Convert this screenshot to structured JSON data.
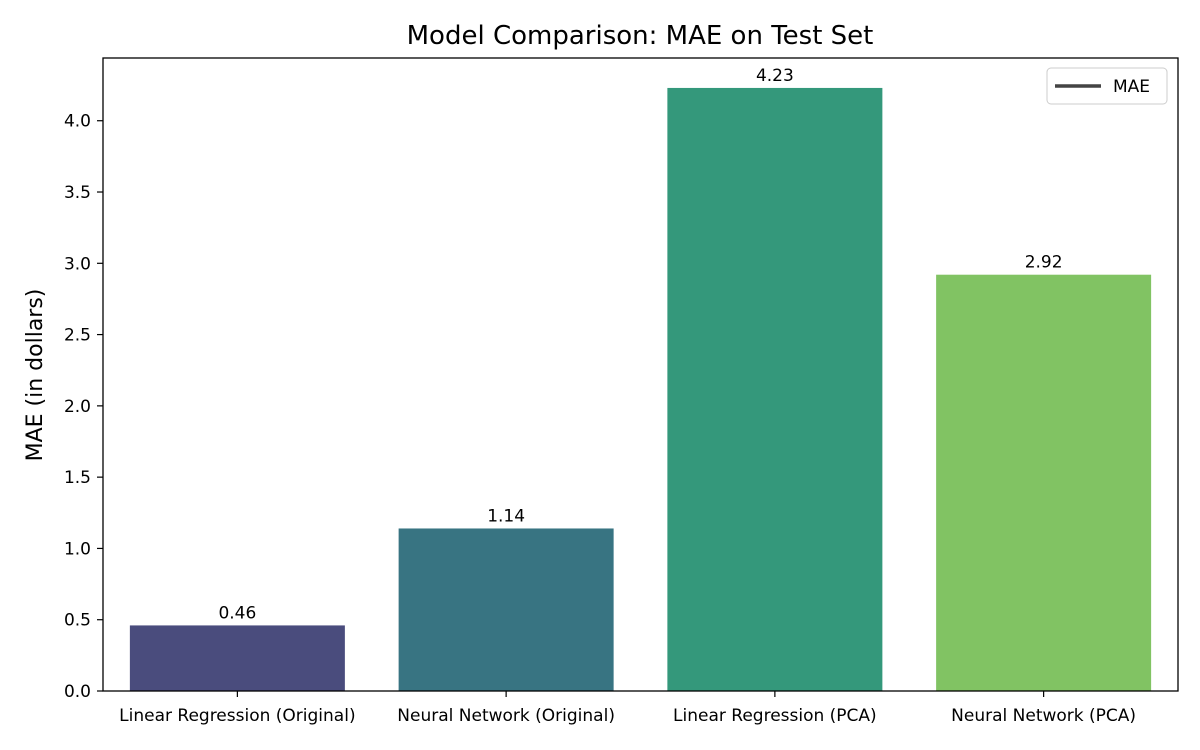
{
  "chart_data": {
    "type": "bar",
    "title": "Model Comparison: MAE on Test Set",
    "xlabel": "",
    "ylabel": "MAE (in dollars)",
    "categories": [
      "Linear Regression (Original)",
      "Neural Network (Original)",
      "Linear Regression (PCA)",
      "Neural Network (PCA)"
    ],
    "values": [
      0.46,
      1.14,
      4.23,
      2.92
    ],
    "value_labels": [
      "0.46",
      "1.14",
      "4.23",
      "2.92"
    ],
    "colors": [
      "#4a4c7d",
      "#387482",
      "#34987b",
      "#81c363"
    ],
    "ylim": [
      0,
      4.44
    ],
    "yticks": [
      0,
      0.5,
      1.0,
      1.5,
      2.0,
      2.5,
      3.0,
      3.5,
      4.0
    ],
    "ytick_labels": [
      "0.0",
      "0.5",
      "1.0",
      "1.5",
      "2.0",
      "2.5",
      "3.0",
      "3.5",
      "4.0"
    ],
    "grid": false,
    "legend": {
      "placement": "top-right",
      "entries": [
        {
          "label": "MAE",
          "color": "#444444",
          "marker": "line"
        }
      ]
    }
  }
}
